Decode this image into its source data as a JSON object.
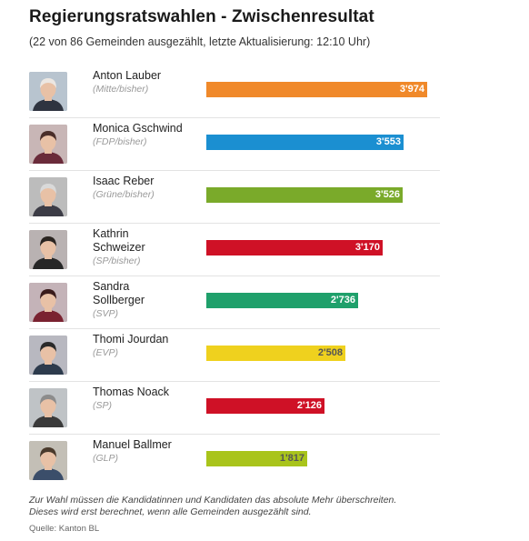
{
  "title": "Regierungsratswahlen - Zwischenresultat",
  "subtitle": "(22 von 86 Gemeinden ausgezählt, letzte Aktualisierung: 12:10 Uhr)",
  "footnote": "Zur Wahl müssen die Kandidatinnen und Kandidaten das absolute Mehr überschreiten. Dieses wird erst berechnet, wenn alle Gemeinden ausgezählt sind.",
  "source": "Quelle: Kanton BL",
  "chart_data": {
    "type": "bar",
    "orientation": "horizontal",
    "title": "Regierungsratswahlen - Zwischenresultat",
    "categories": [
      "Anton Lauber",
      "Monica Gschwind",
      "Isaac Reber",
      "Kathrin Schweizer",
      "Sandra Sollberger",
      "Thomi Jourdan",
      "Thomas Noack",
      "Manuel Ballmer"
    ],
    "values": [
      3974,
      3553,
      3526,
      3170,
      2736,
      2508,
      2126,
      1817
    ],
    "bars": [
      {
        "name": "Anton Lauber",
        "name_lines": [
          "Anton Lauber"
        ],
        "party": "(Mitte/bisher)",
        "value": 3974,
        "label": "3'974",
        "color": "#f0892a",
        "label_color": "#ffffff"
      },
      {
        "name": "Monica Gschwind",
        "name_lines": [
          "Monica Gschwind"
        ],
        "party": "(FDP/bisher)",
        "value": 3553,
        "label": "3'553",
        "color": "#1b8fd1",
        "label_color": "#ffffff"
      },
      {
        "name": "Isaac Reber",
        "name_lines": [
          "Isaac Reber"
        ],
        "party": "(Grüne/bisher)",
        "value": 3526,
        "label": "3'526",
        "color": "#7aaa2a",
        "label_color": "#ffffff"
      },
      {
        "name": "Kathrin Schweizer",
        "name_lines": [
          "Kathrin",
          "Schweizer"
        ],
        "party": "(SP/bisher)",
        "value": 3170,
        "label": "3'170",
        "color": "#cf1126",
        "label_color": "#ffffff"
      },
      {
        "name": "Sandra Sollberger",
        "name_lines": [
          "Sandra",
          "Sollberger"
        ],
        "party": "(SVP)",
        "value": 2736,
        "label": "2'736",
        "color": "#1fa06b",
        "label_color": "#ffffff"
      },
      {
        "name": "Thomi Jourdan",
        "name_lines": [
          "Thomi Jourdan"
        ],
        "party": "(EVP)",
        "value": 2508,
        "label": "2'508",
        "color": "#efd11e",
        "label_color": "#555555"
      },
      {
        "name": "Thomas Noack",
        "name_lines": [
          "Thomas Noack"
        ],
        "party": "(SP)",
        "value": 2126,
        "label": "2'126",
        "color": "#cf1126",
        "label_color": "#ffffff"
      },
      {
        "name": "Manuel Ballmer",
        "name_lines": [
          "Manuel Ballmer"
        ],
        "party": "(GLP)",
        "value": 1817,
        "label": "1'817",
        "color": "#a9c41b",
        "label_color": "#555555"
      }
    ],
    "xlim": [
      0,
      3974
    ],
    "grid": false,
    "legend": "none"
  }
}
